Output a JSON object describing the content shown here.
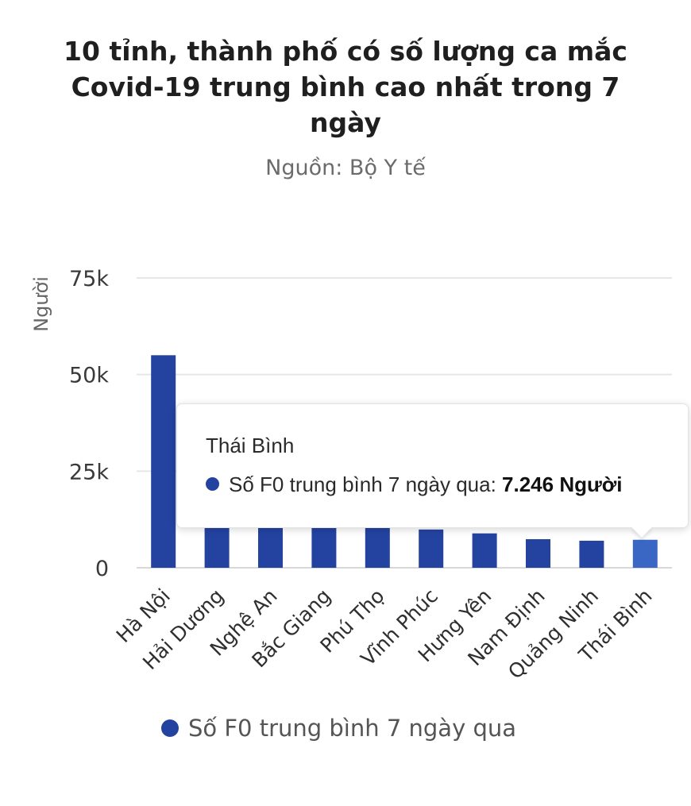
{
  "chart_data": {
    "type": "bar",
    "title": "10 tỉnh, thành phố có số lượng ca mắc Covid-19 trung bình cao nhất trong 7 ngày",
    "subtitle": "Nguồn: Bộ Y tế",
    "ylabel": "Người",
    "xlabel": "",
    "ylim": [
      0,
      75000
    ],
    "yticks": [
      {
        "value": 0,
        "label": "0"
      },
      {
        "value": 25000,
        "label": "25k"
      },
      {
        "value": 50000,
        "label": "50k"
      },
      {
        "value": 75000,
        "label": "75k"
      }
    ],
    "grid": true,
    "categories": [
      "Hà Nội",
      "Hải Dương",
      "Nghệ An",
      "Bắc Giang",
      "Phú Thọ",
      "Vĩnh Phúc",
      "Hưng Yên",
      "Nam Định",
      "Quảng Ninh",
      "Thái Bình"
    ],
    "series": [
      {
        "name": "Số F0 trung bình 7 ngày qua",
        "values": [
          55000,
          12500,
          11500,
          11000,
          10500,
          9900,
          8900,
          7400,
          7000,
          7246
        ],
        "color": "#2443a0",
        "highlight_color": "#3a67c4"
      }
    ],
    "highlighted_index": 9,
    "legend_position": "bottom"
  },
  "tooltip": {
    "title": "Thái Bình",
    "series_label": "Số F0 trung bình 7 ngày qua:",
    "value": "7.246 Người"
  },
  "legend": {
    "label": "Số F0 trung bình 7 ngày qua"
  }
}
